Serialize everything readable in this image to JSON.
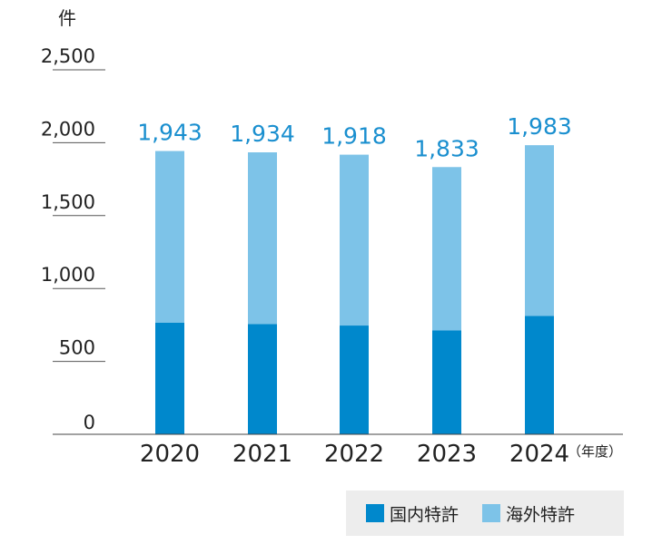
{
  "chart_data": {
    "type": "bar",
    "stacked": true,
    "y_unit": "件",
    "x_unit": "（年度）",
    "categories": [
      "2020",
      "2021",
      "2022",
      "2023",
      "2024"
    ],
    "series": [
      {
        "name": "国内特許",
        "color": "#0088cc",
        "values": [
          765,
          757,
          746,
          712,
          812
        ]
      },
      {
        "name": "海外特許",
        "color": "#7dc3e8",
        "values": [
          1178,
          1177,
          1172,
          1121,
          1171
        ]
      }
    ],
    "totals": [
      1943,
      1934,
      1918,
      1833,
      1983
    ],
    "total_labels": [
      "1,943",
      "1,934",
      "1,918",
      "1,833",
      "1,983"
    ],
    "total_label_color": "#1a8fcf",
    "ylim": [
      0,
      2500
    ],
    "yticks": [
      0,
      500,
      1000,
      1500,
      2000,
      2500
    ],
    "ytick_labels": [
      "0",
      "500",
      "1,000",
      "1,500",
      "2,000",
      "2,500"
    ],
    "grid": false,
    "legend_position": "bottom-right"
  }
}
